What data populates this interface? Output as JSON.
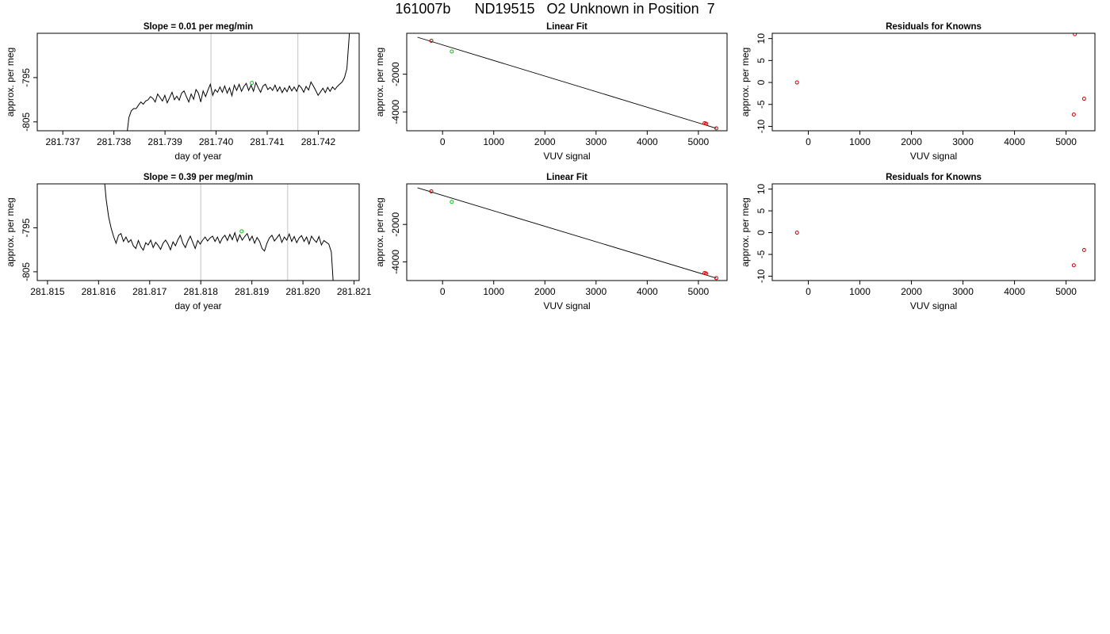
{
  "figure": {
    "title": "161007b      ND19515   O2 Unknown in Position  7"
  },
  "colors": {
    "trace": "#000000",
    "marker_green": "#00cc00",
    "marker_red": "#cc0000",
    "vline": "#cccccc",
    "box": "#000000"
  },
  "chart_data": [
    {
      "type": "line",
      "row": 1,
      "col": 1,
      "title": "Slope =  0.01  per meg/min",
      "xlabel": "day of year",
      "ylabel": "approx. per meg",
      "xlim": [
        281.7365,
        281.7428
      ],
      "ylim": [
        -807,
        -785
      ],
      "xticks": [
        281.737,
        281.738,
        281.739,
        281.74,
        281.741,
        281.742
      ],
      "xtick_labels": [
        "281.737",
        "281.738",
        "281.739",
        "281.740",
        "281.741",
        "281.742"
      ],
      "yticks": [
        -805,
        -795
      ],
      "ytick_labels": [
        "-805",
        "-795"
      ],
      "vlines": [
        281.7399,
        281.7416
      ],
      "series": [
        {
          "start": 281.7382,
          "end": 281.7427,
          "base": -797.5,
          "noise": [
            [
              -60,
              -11,
              -6.5,
              -5,
              -4.5,
              -4.5,
              -3.7,
              -3.0,
              -3.5,
              -2.8
            ],
            [
              -2.5,
              -1.8,
              -2.2,
              -3.0,
              -1.2,
              -2.0,
              -2.8,
              -1.5,
              -3.2,
              -2.0
            ],
            [
              -0.8,
              -2.5,
              -1.7,
              -2.6,
              -1.0,
              -0.5,
              -1.8,
              -3.0,
              -1.2,
              -2.4
            ],
            [
              -0.2,
              -1.0,
              -3.0,
              -0.5,
              -1.8,
              -0.3,
              1.0,
              -1.5,
              -0.2,
              -0.8
            ],
            [
              0.4,
              -0.8,
              0.6,
              -1.0,
              0.2,
              -1.6,
              0.8,
              -0.4,
              1.0,
              -0.6
            ],
            [
              0.5,
              1.2,
              -0.4,
              0.8,
              -0.6,
              1.4,
              0.2,
              -0.8,
              0.6,
              1.0
            ],
            [
              -0.2,
              0.3,
              -0.4,
              0.8,
              -0.6,
              0.4,
              -0.9,
              0.2,
              -0.7,
              0.6
            ],
            [
              -0.5,
              0.4,
              -0.6,
              0.8,
              0.2,
              -0.8,
              0.5,
              -0.3,
              1.5,
              0.6
            ],
            [
              -0.4,
              -1.5,
              -0.7,
              0.1,
              -0.9,
              0.3,
              -0.6,
              0.4,
              -0.2,
              0.5
            ],
            [
              1.0,
              1.5,
              2.5,
              4.5,
              12.0,
              50.0,
              110.0
            ]
          ]
        }
      ],
      "markers": [
        {
          "x": 281.7407,
          "y": -796.2,
          "color": "#00cc00"
        }
      ]
    },
    {
      "type": "line",
      "row": 2,
      "col": 1,
      "title": "Slope =  0.39  per meg/min",
      "xlabel": "day of year",
      "ylabel": "approx. per meg",
      "xlim": [
        281.8148,
        281.8211
      ],
      "ylim": [
        -807,
        -785
      ],
      "xticks": [
        281.815,
        281.816,
        281.817,
        281.818,
        281.819,
        281.82,
        281.821
      ],
      "xtick_labels": [
        "281.815",
        "281.816",
        "281.817",
        "281.818",
        "281.819",
        "281.820",
        "281.821"
      ],
      "yticks": [
        -805,
        -795
      ],
      "ytick_labels": [
        "-805",
        "-795"
      ],
      "vlines": [
        281.818,
        281.8197
      ],
      "series": [
        {
          "start": 281.8161,
          "end": 281.8207,
          "base": -797.5,
          "noise": [
            [
              15,
              9,
              5,
              2.5,
              0.5,
              -1.0,
              0.8,
              1.2,
              -0.6,
              0.4
            ],
            [
              -0.8,
              -0.2,
              -1.6,
              -2.2,
              -0.4,
              -1.8,
              -2.6,
              -0.9,
              -1.4,
              -0.3
            ],
            [
              -2.0,
              -0.8,
              -1.5,
              -2.4,
              -1.0,
              -0.3,
              -1.2,
              -2.5,
              -0.7,
              -1.6
            ],
            [
              -0.2,
              0.8,
              -1.0,
              -2.0,
              -0.5,
              0.6,
              -0.8,
              -2.2,
              -0.4,
              -1.2
            ],
            [
              -0.3,
              0.4,
              -0.5,
              0.2,
              0.6,
              -0.6,
              0.4,
              -1.0,
              0.2,
              0.8
            ],
            [
              -0.4,
              1.0,
              -0.2,
              1.4,
              -0.6,
              0.9,
              -0.3,
              0.5,
              1.2,
              -0.4
            ],
            [
              0.6,
              -1.0,
              0.3,
              -0.6,
              -2.2,
              -2.8,
              -1.0,
              0.2,
              0.8,
              -0.5
            ],
            [
              0.2,
              1.0,
              -0.8,
              0.4,
              -0.3,
              1.1,
              -0.6,
              0.5,
              -0.9,
              0.2
            ],
            [
              0.7,
              -0.6,
              0.4,
              -1.2,
              0.6,
              -0.2,
              -0.8,
              0.5,
              -1.4,
              -0.4
            ],
            [
              -0.8,
              -1.2,
              -3.0,
              -12.0,
              -40.0,
              -80.0
            ]
          ]
        }
      ],
      "markers": [
        {
          "x": 281.8188,
          "y": -795.8,
          "color": "#00cc00"
        }
      ]
    },
    {
      "type": "scatter",
      "row": 1,
      "col": 2,
      "title": "Linear Fit",
      "xlabel": "VUV signal",
      "ylabel": "approx. per meg",
      "xlim": [
        -700,
        5560
      ],
      "ylim": [
        -5000,
        170
      ],
      "xticks": [
        0,
        1000,
        2000,
        3000,
        4000,
        5000
      ],
      "xtick_labels": [
        "0",
        "1000",
        "2000",
        "3000",
        "4000",
        "5000"
      ],
      "yticks": [
        -4000,
        -2000
      ],
      "ytick_labels": [
        "-4000",
        "-2000"
      ],
      "fit_line": {
        "x": [
          -490,
          5350
        ],
        "y": [
          -40,
          -4870
        ]
      },
      "points": [
        {
          "x": -220,
          "y": -230,
          "color": "#cc0000"
        },
        {
          "x": 180,
          "y": -795,
          "color": "#00cc00"
        },
        {
          "x": 5120,
          "y": -4600,
          "color": "#cc0000"
        },
        {
          "x": 5150,
          "y": -4620,
          "color": "#cc0000"
        },
        {
          "x": 5350,
          "y": -4870,
          "color": "#cc0000"
        }
      ]
    },
    {
      "type": "scatter",
      "row": 2,
      "col": 2,
      "title": "Linear Fit",
      "xlabel": "VUV signal",
      "ylabel": "approx. per meg",
      "xlim": [
        -700,
        5560
      ],
      "ylim": [
        -5000,
        170
      ],
      "xticks": [
        0,
        1000,
        2000,
        3000,
        4000,
        5000
      ],
      "xtick_labels": [
        "0",
        "1000",
        "2000",
        "3000",
        "4000",
        "5000"
      ],
      "yticks": [
        -4000,
        -2000
      ],
      "ytick_labels": [
        "-4000",
        "-2000"
      ],
      "fit_line": {
        "x": [
          -490,
          5350
        ],
        "y": [
          -40,
          -4870
        ]
      },
      "points": [
        {
          "x": -220,
          "y": -230,
          "color": "#cc0000"
        },
        {
          "x": 180,
          "y": -795,
          "color": "#00cc00"
        },
        {
          "x": 5120,
          "y": -4600,
          "color": "#cc0000"
        },
        {
          "x": 5150,
          "y": -4620,
          "color": "#cc0000"
        },
        {
          "x": 5350,
          "y": -4870,
          "color": "#cc0000"
        }
      ]
    },
    {
      "type": "scatter",
      "row": 1,
      "col": 3,
      "title": "Residuals for Knowns",
      "xlabel": "VUV signal",
      "ylabel": "approx. per meg",
      "xlim": [
        -700,
        5560
      ],
      "ylim": [
        -11,
        11.2
      ],
      "xticks": [
        0,
        1000,
        2000,
        3000,
        4000,
        5000
      ],
      "xtick_labels": [
        "0",
        "1000",
        "2000",
        "3000",
        "4000",
        "5000"
      ],
      "yticks": [
        -10,
        -5,
        0,
        5,
        10
      ],
      "ytick_labels": [
        "-10",
        "-5",
        "0",
        "5",
        "10"
      ],
      "points": [
        {
          "x": -220,
          "y": 0,
          "color": "#cc0000"
        },
        {
          "x": 5170,
          "y": 11,
          "color": "#cc0000"
        },
        {
          "x": 5350,
          "y": -3.7,
          "color": "#cc0000"
        },
        {
          "x": 5150,
          "y": -7.3,
          "color": "#cc0000"
        }
      ]
    },
    {
      "type": "scatter",
      "row": 2,
      "col": 3,
      "title": "Residuals for Knowns",
      "xlabel": "VUV signal",
      "ylabel": "approx. per meg",
      "xlim": [
        -700,
        5560
      ],
      "ylim": [
        -11,
        11.2
      ],
      "xticks": [
        0,
        1000,
        2000,
        3000,
        4000,
        5000
      ],
      "xtick_labels": [
        "0",
        "1000",
        "2000",
        "3000",
        "4000",
        "5000"
      ],
      "yticks": [
        -10,
        -5,
        0,
        5,
        10
      ],
      "ytick_labels": [
        "-10",
        "-5",
        "0",
        "5",
        "10"
      ],
      "points": [
        {
          "x": -220,
          "y": 0,
          "color": "#cc0000"
        },
        {
          "x": 5350,
          "y": -4.0,
          "color": "#cc0000"
        },
        {
          "x": 5150,
          "y": -7.5,
          "color": "#cc0000"
        }
      ]
    }
  ]
}
